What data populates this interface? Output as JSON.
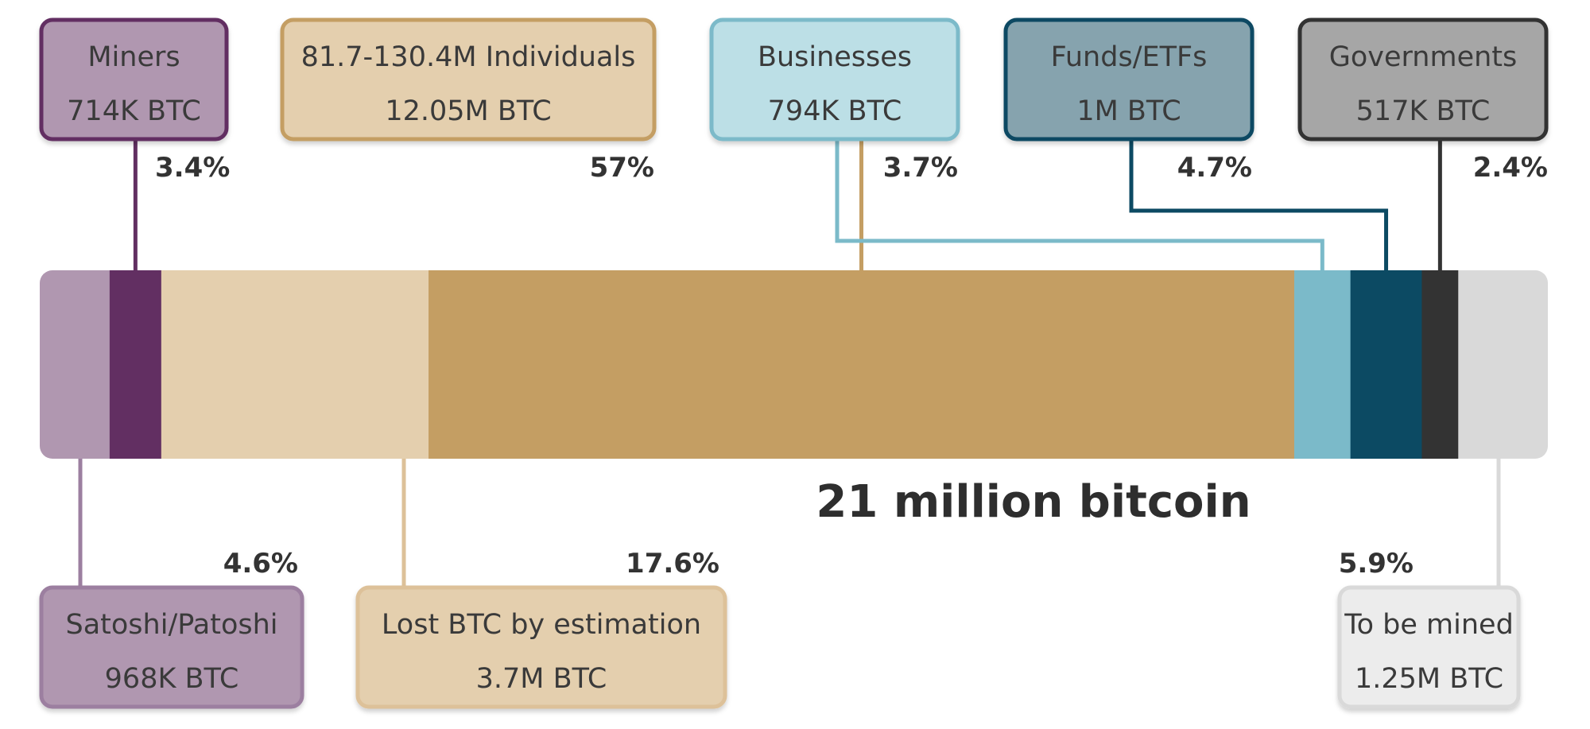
{
  "chart_data": {
    "type": "bar",
    "orientation": "horizontal-stacked",
    "total_label": "21 million bitcoin",
    "segments": [
      {
        "key": "satoshi",
        "name": "Satoshi/Patoshi",
        "amount": "968K BTC",
        "percent_label": "4.6%",
        "value": 4.6,
        "fill": "#b097b0",
        "border": "#b097b0",
        "box_fill": "#b097b0",
        "box_border": "#9c7fa0",
        "position": "bottom"
      },
      {
        "key": "miners",
        "name": "Miners",
        "amount": "714K BTC",
        "percent_label": "3.4%",
        "value": 3.4,
        "fill": "#622f62",
        "border": "#622f62",
        "box_fill": "#b097b0",
        "box_border": "#622f62",
        "position": "top"
      },
      {
        "key": "lost",
        "name": "Lost BTC by estimation",
        "amount": "3.7M BTC",
        "percent_label": "17.6%",
        "value": 17.6,
        "fill": "#e4cfae",
        "border": "#e4cfae",
        "box_fill": "#e4cfae",
        "box_border": "#ddc199",
        "position": "bottom"
      },
      {
        "key": "individuals",
        "name": "81.7-130.4M Individuals",
        "amount": "12.05M BTC",
        "percent_label": "57%",
        "value": 57,
        "fill": "#c49e63",
        "border": "#c49e63",
        "box_fill": "#e4cfae",
        "box_border": "#c49e63",
        "position": "top"
      },
      {
        "key": "businesses",
        "name": "Businesses",
        "amount": "794K BTC",
        "percent_label": "3.7%",
        "value": 3.7,
        "fill": "#7bbac9",
        "border": "#7bbac9",
        "box_fill": "#bcdfe6",
        "box_border": "#7bbac9",
        "position": "top"
      },
      {
        "key": "funds",
        "name": "Funds/ETFs",
        "amount": "1M BTC",
        "percent_label": "4.7%",
        "value": 4.7,
        "fill": "#0c4a63",
        "border": "#0c4a63",
        "box_fill": "#86a3ae",
        "box_border": "#0c4a63",
        "position": "top"
      },
      {
        "key": "governments",
        "name": "Governments",
        "amount": "517K BTC",
        "percent_label": "2.4%",
        "value": 2.4,
        "fill": "#333333",
        "border": "#333333",
        "box_fill": "#a6a6a6",
        "box_border": "#333333",
        "position": "top"
      },
      {
        "key": "tobemined",
        "name": "To be mined",
        "amount": "1.25M BTC",
        "percent_label": "5.9%",
        "value": 5.9,
        "fill": "#d9d9d9",
        "border": "#d9d9d9",
        "box_fill": "#ececec",
        "box_border": "#d9d9d9",
        "position": "bottom"
      }
    ]
  }
}
